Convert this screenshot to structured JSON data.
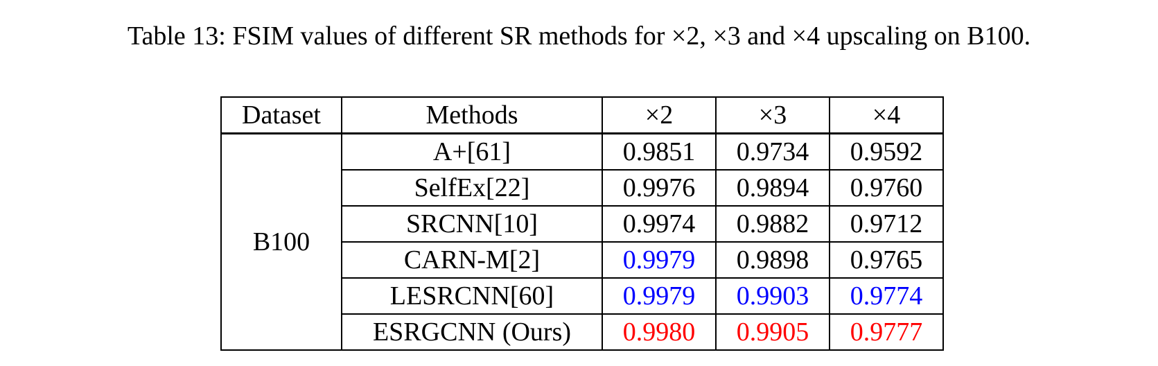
{
  "caption": "Table 13: FSIM values of different SR methods for ×2, ×3 and ×4 upscaling on B100.",
  "table": {
    "headers": [
      "Dataset",
      "Methods",
      "×2",
      "×3",
      "×4"
    ],
    "dataset": "B100",
    "rows": [
      {
        "method": "A+[61]",
        "values": [
          "0.9851",
          "0.9734",
          "0.9592"
        ],
        "colors": [
          "black",
          "black",
          "black"
        ]
      },
      {
        "method": "SelfEx[22]",
        "values": [
          "0.9976",
          "0.9894",
          "0.9760"
        ],
        "colors": [
          "black",
          "black",
          "black"
        ]
      },
      {
        "method": "SRCNN[10]",
        "values": [
          "0.9974",
          "0.9882",
          "0.9712"
        ],
        "colors": [
          "black",
          "black",
          "black"
        ]
      },
      {
        "method": "CARN-M[2]",
        "values": [
          "0.9979",
          "0.9898",
          "0.9765"
        ],
        "colors": [
          "blue",
          "black",
          "black"
        ]
      },
      {
        "method": "LESRCNN[60]",
        "values": [
          "0.9979",
          "0.9903",
          "0.9774"
        ],
        "colors": [
          "blue",
          "blue",
          "blue"
        ]
      },
      {
        "method": "ESRGCNN (Ours)",
        "values": [
          "0.9980",
          "0.9905",
          "0.9777"
        ],
        "colors": [
          "red",
          "red",
          "red"
        ]
      }
    ],
    "highlight_colors": {
      "blue": "#0000ff",
      "red": "#ff0000",
      "black": "#000000"
    }
  }
}
